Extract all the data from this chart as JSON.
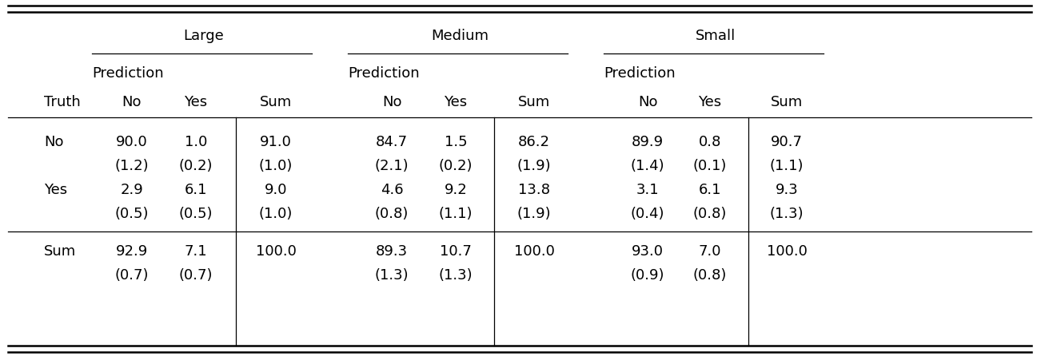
{
  "figsize": [
    13.02,
    4.52
  ],
  "dpi": 100,
  "groups": [
    "Large",
    "Medium",
    "Small"
  ],
  "sub_header": "Prediction",
  "col_labels": [
    "No",
    "Yes",
    "Sum"
  ],
  "cell_data": {
    "Large": {
      "No": [
        "90.0",
        "1.0",
        "91.0",
        "(1.2)",
        "(0.2)",
        "(1.0)"
      ],
      "Yes": [
        "2.9",
        "6.1",
        "9.0",
        "(0.5)",
        "(0.5)",
        "(1.0)"
      ],
      "Sum": [
        "92.9",
        "7.1",
        "100.0",
        "(0.7)",
        "(0.7)",
        ""
      ]
    },
    "Medium": {
      "No": [
        "84.7",
        "1.5",
        "86.2",
        "(2.1)",
        "(0.2)",
        "(1.9)"
      ],
      "Yes": [
        "4.6",
        "9.2",
        "13.8",
        "(0.8)",
        "(1.1)",
        "(1.9)"
      ],
      "Sum": [
        "89.3",
        "10.7",
        "100.0",
        "(1.3)",
        "(1.3)",
        ""
      ]
    },
    "Small": {
      "No": [
        "89.9",
        "0.8",
        "90.7",
        "(1.4)",
        "(0.1)",
        "(1.1)"
      ],
      "Yes": [
        "3.1",
        "6.1",
        "9.3",
        "(0.4)",
        "(0.8)",
        "(1.3)"
      ],
      "Sum": [
        "93.0",
        "7.0",
        "100.0",
        "(0.9)",
        "(0.8)",
        ""
      ]
    }
  },
  "bg_color": "#ffffff",
  "text_color": "#000000",
  "font_size": 13
}
